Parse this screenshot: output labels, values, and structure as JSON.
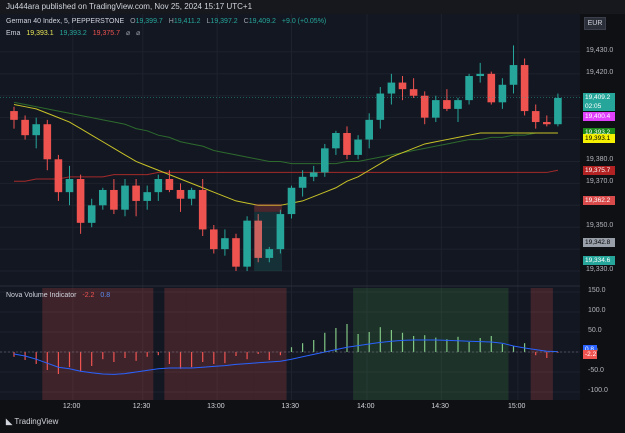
{
  "header": {
    "published": "Ju444ara published on TradingView.com, Nov 25, 2024 15:17 UTC+1"
  },
  "symbol_legend": {
    "name": "German 40 Index, 5, PEPPERSTONE",
    "o_label": "O",
    "o": "19,399.7",
    "h_label": "H",
    "h": "19,411.2",
    "l_label": "L",
    "l": "19,397.2",
    "c_label": "C",
    "c": "19,409.2",
    "change": "+9.0 (+0.05%)"
  },
  "ema_legend": {
    "name": "Ema",
    "v1": "19,393.1",
    "v2": "19,393.2",
    "v3": "19,375.7"
  },
  "indicator_legend": {
    "name": "Nova Volume Indicator",
    "v1": "-2.2",
    "v2": "0.8"
  },
  "currency": "EUR",
  "colors": {
    "up": "#26a69a",
    "down": "#ef5350",
    "ema_fast": "#c7c227",
    "ema_mid": "#2d6b2d",
    "ema_slow": "#a52a2a",
    "vol_line": "#2962ff"
  },
  "price_axis": [
    "19,430.0",
    "19,420.0",
    "19,380.0",
    "19,370.0",
    "19,350.0",
    "19,330.0"
  ],
  "price_tags": [
    {
      "label": "19,409.2",
      "bg": "#26a69a",
      "fg": "#ffffff"
    },
    {
      "label": "02:05",
      "bg": "#26a69a",
      "fg": "#ffffff"
    },
    {
      "label": "19,400.4",
      "bg": "#e040fb",
      "fg": "#ffffff"
    },
    {
      "label": "19,393.2",
      "bg": "#1b8a1b",
      "fg": "#ffffff"
    },
    {
      "label": "19,393.1",
      "bg": "#f5f000",
      "fg": "#000000"
    },
    {
      "label": "19,375.7",
      "bg": "#b22222",
      "fg": "#ffffff"
    },
    {
      "label": "19,362.2",
      "bg": "#d94b4b",
      "fg": "#ffffff"
    },
    {
      "label": "19,342.8",
      "bg": "#9aa0aa",
      "fg": "#000000"
    },
    {
      "label": "19,334.6",
      "bg": "#26a69a",
      "fg": "#ffffff"
    }
  ],
  "indicator_axis": [
    "150.0",
    "100.0",
    "50.0",
    "0.0",
    "-50.0",
    "-100.0"
  ],
  "indicator_tags": [
    {
      "label": "0.8",
      "bg": "#2962ff",
      "fg": "#ffffff"
    },
    {
      "label": "-2.2",
      "bg": "#ef5350",
      "fg": "#ffffff"
    }
  ],
  "time_axis": [
    "12:00",
    "12:30",
    "13:00",
    "13:30",
    "14:00",
    "14:30",
    "15:00"
  ],
  "footer": {
    "brand": "TradingView"
  },
  "chart_data": {
    "type": "candlestick",
    "candles": [
      [
        19403,
        19405,
        19395,
        19399
      ],
      [
        19399,
        19401,
        19390,
        19392
      ],
      [
        19392,
        19400,
        19386,
        19397
      ],
      [
        19397,
        19399,
        19376,
        19381
      ],
      [
        19381,
        19383,
        19362,
        19366
      ],
      [
        19366,
        19378,
        19360,
        19372
      ],
      [
        19372,
        19374,
        19347,
        19352
      ],
      [
        19352,
        19363,
        19350,
        19360
      ],
      [
        19360,
        19368,
        19358,
        19367
      ],
      [
        19367,
        19372,
        19356,
        19358
      ],
      [
        19358,
        19372,
        19355,
        19369
      ],
      [
        19369,
        19372,
        19355,
        19362
      ],
      [
        19362,
        19369,
        19358,
        19366
      ],
      [
        19366,
        19374,
        19362,
        19372
      ],
      [
        19372,
        19376,
        19366,
        19367
      ],
      [
        19367,
        19370,
        19357,
        19363
      ],
      [
        19363,
        19368,
        19360,
        19367
      ],
      [
        19367,
        19372,
        19346,
        19349
      ],
      [
        19349,
        19351,
        19338,
        19340
      ],
      [
        19340,
        19349,
        19337,
        19345
      ],
      [
        19345,
        19347,
        19330,
        19332
      ],
      [
        19332,
        19355,
        19330,
        19353
      ],
      [
        19353,
        19356,
        19334,
        19336
      ],
      [
        19336,
        19341,
        19334,
        19340
      ],
      [
        19340,
        19358,
        19338,
        19356
      ],
      [
        19356,
        19369,
        19354,
        19368
      ],
      [
        19368,
        19376,
        19364,
        19373
      ],
      [
        19373,
        19378,
        19371,
        19375
      ],
      [
        19375,
        19388,
        19373,
        19386
      ],
      [
        19386,
        19394,
        19383,
        19393
      ],
      [
        19393,
        19396,
        19381,
        19383
      ],
      [
        19383,
        19392,
        19381,
        19390
      ],
      [
        19390,
        19402,
        19386,
        19399
      ],
      [
        19399,
        19414,
        19395,
        19411
      ],
      [
        19411,
        19420,
        19406,
        19416
      ],
      [
        19416,
        19419,
        19408,
        19413
      ],
      [
        19413,
        19418,
        19409,
        19410
      ],
      [
        19410,
        19412,
        19397,
        19400
      ],
      [
        19400,
        19410,
        19398,
        19408
      ],
      [
        19408,
        19413,
        19403,
        19404
      ],
      [
        19404,
        19409,
        19398,
        19408
      ],
      [
        19408,
        19420,
        19406,
        19419
      ],
      [
        19419,
        19425,
        19416,
        19420
      ],
      [
        19420,
        19421,
        19406,
        19407
      ],
      [
        19407,
        19418,
        19404,
        19415
      ],
      [
        19415,
        19433,
        19411,
        19424
      ],
      [
        19424,
        19427,
        19401,
        19403
      ],
      [
        19403,
        19406,
        19395,
        19398
      ],
      [
        19398,
        19401,
        19396,
        19397
      ],
      [
        19397,
        19411,
        19396,
        19409
      ]
    ],
    "ema_fast": [
      19406,
      19405,
      19404,
      19402,
      19400,
      19398,
      19395,
      19392,
      19389,
      19386,
      19383,
      19380,
      19378,
      19376,
      19374,
      19372,
      19370,
      19368,
      19366,
      19364,
      19362,
      19361,
      19360,
      19360,
      19360,
      19361,
      19362,
      19364,
      19366,
      19368,
      19371,
      19373,
      19376,
      19379,
      19382,
      19384,
      19386,
      19388,
      19389,
      19390,
      19391,
      19392,
      19393,
      19393,
      19393,
      19393,
      19393,
      19393,
      19393,
      19393
    ],
    "ema_mid": [
      19407,
      19406,
      19405,
      19404,
      19403,
      19402,
      19401,
      19400,
      19399,
      19398,
      19397,
      19395,
      19394,
      19392,
      19391,
      19389,
      19388,
      19387,
      19385,
      19384,
      19383,
      19382,
      19381,
      19380,
      19380,
      19379,
      19379,
      19379,
      19379,
      19379,
      19380,
      19380,
      19381,
      19382,
      19383,
      19384,
      19385,
      19386,
      19387,
      19388,
      19389,
      19390,
      19390,
      19391,
      19391,
      19392,
      19392,
      19393,
      19393,
      19393
    ],
    "ema_slow": [
      19371,
      19371,
      19372,
      19372,
      19372,
      19373,
      19373,
      19373,
      19373,
      19374,
      19374,
      19374,
      19374,
      19375,
      19375,
      19375,
      19375,
      19375,
      19375,
      19375,
      19375,
      19375,
      19375,
      19375,
      19375,
      19375,
      19375,
      19375,
      19375,
      19375,
      19375,
      19375,
      19375,
      19375,
      19375,
      19375,
      19375,
      19375,
      19375,
      19375,
      19375,
      19375,
      19375,
      19375,
      19375,
      19375,
      19375,
      19375,
      19375,
      19376
    ],
    "volume_histogram": [
      -12,
      -20,
      -30,
      -45,
      -55,
      -38,
      -48,
      -35,
      -18,
      -25,
      -15,
      -22,
      -12,
      -8,
      -30,
      -42,
      -38,
      -25,
      -30,
      -28,
      -10,
      -18,
      -5,
      -20,
      -8,
      12,
      22,
      30,
      48,
      60,
      70,
      45,
      50,
      62,
      55,
      48,
      40,
      42,
      36,
      32,
      38,
      25,
      35,
      40,
      20,
      15,
      22,
      -8,
      -15,
      -2
    ],
    "volume_line": [
      -5,
      -10,
      -18,
      -28,
      -38,
      -42,
      -48,
      -52,
      -55,
      -56,
      -54,
      -50,
      -46,
      -42,
      -40,
      -40,
      -40,
      -38,
      -36,
      -34,
      -31,
      -29,
      -27,
      -25,
      -23,
      -18,
      -12,
      -6,
      0,
      6,
      12,
      16,
      20,
      24,
      27,
      29,
      30,
      30,
      30,
      29,
      28,
      27,
      26,
      25,
      22,
      15,
      10,
      6,
      2,
      1
    ],
    "indicator_ylim": [
      -120,
      160
    ],
    "price_ylim": [
      19325,
      19440
    ],
    "x_ticks": [
      "12:00",
      "12:30",
      "13:00",
      "13:30",
      "14:00",
      "14:30",
      "15:00"
    ]
  }
}
